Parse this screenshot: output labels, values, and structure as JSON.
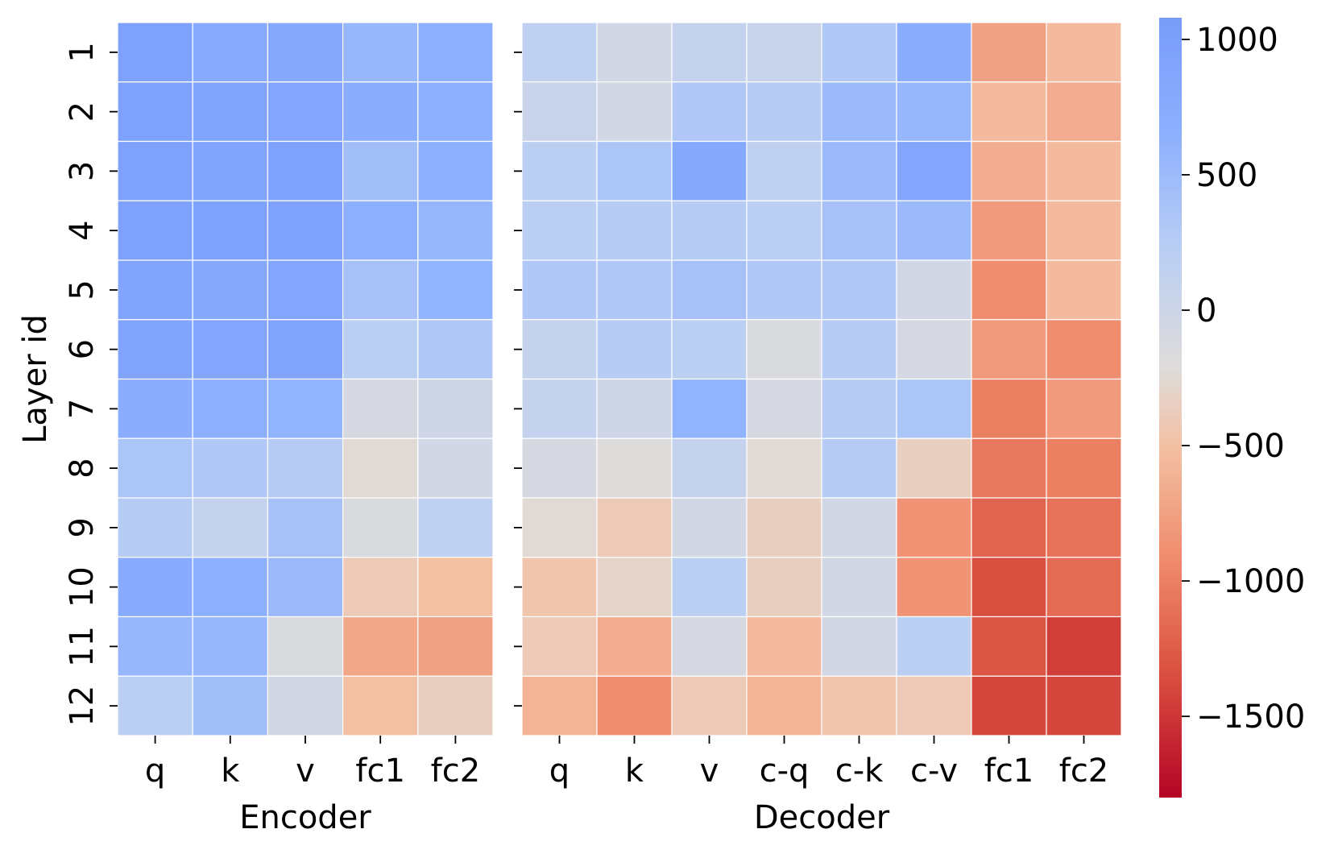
{
  "chart_data": {
    "type": "heatmap",
    "colormap": "coolwarm_r",
    "vmin": -1800,
    "vmax": 1080,
    "ylabel": "Layer id",
    "row_labels": [
      "1",
      "2",
      "3",
      "4",
      "5",
      "6",
      "7",
      "8",
      "9",
      "10",
      "11",
      "12"
    ],
    "colorbar": {
      "ticks": [
        1000,
        500,
        0,
        -500,
        -1000,
        -1500
      ],
      "tick_labels": [
        "1000",
        "500",
        "0",
        "−500",
        "−1000",
        "−1500"
      ]
    },
    "panels": [
      {
        "name": "encoder",
        "xlabel": "Encoder",
        "columns": [
          "q",
          "k",
          "v",
          "fc1",
          "fc2"
        ],
        "values": [
          [
            950,
            750,
            800,
            550,
            650
          ],
          [
            950,
            900,
            850,
            700,
            650
          ],
          [
            950,
            900,
            950,
            450,
            650
          ],
          [
            950,
            950,
            950,
            650,
            550
          ],
          [
            900,
            800,
            850,
            400,
            600
          ],
          [
            900,
            850,
            900,
            200,
            300
          ],
          [
            700,
            650,
            600,
            -100,
            0
          ],
          [
            350,
            300,
            250,
            -250,
            -50
          ],
          [
            250,
            100,
            400,
            -150,
            150
          ],
          [
            750,
            650,
            500,
            -400,
            -500
          ],
          [
            550,
            550,
            -150,
            -700,
            -750
          ],
          [
            200,
            450,
            -50,
            -500,
            -350
          ]
        ]
      },
      {
        "name": "decoder",
        "xlabel": "Decoder",
        "columns": [
          "q",
          "k",
          "v",
          "c-q",
          "c-k",
          "c-v",
          "fc1",
          "fc2"
        ],
        "values": [
          [
            150,
            -50,
            100,
            50,
            300,
            700,
            -750,
            -550
          ],
          [
            50,
            -50,
            300,
            250,
            500,
            550,
            -550,
            -650
          ],
          [
            200,
            350,
            800,
            150,
            500,
            850,
            -650,
            -550
          ],
          [
            200,
            250,
            250,
            200,
            400,
            500,
            -800,
            -550
          ],
          [
            300,
            300,
            400,
            300,
            300,
            -50,
            -900,
            -550
          ],
          [
            100,
            250,
            200,
            -150,
            250,
            -100,
            -800,
            -900
          ],
          [
            100,
            0,
            600,
            -100,
            250,
            350,
            -1000,
            -800
          ],
          [
            -100,
            -200,
            100,
            -250,
            250,
            -350,
            -1050,
            -1000
          ],
          [
            -250,
            -400,
            -50,
            -350,
            -50,
            -850,
            -1200,
            -1100
          ],
          [
            -450,
            -300,
            200,
            -350,
            -50,
            -850,
            -1350,
            -1150
          ],
          [
            -400,
            -650,
            -100,
            -550,
            -50,
            200,
            -1300,
            -1450
          ],
          [
            -600,
            -900,
            -400,
            -600,
            -450,
            -400,
            -1400,
            -1400
          ]
        ]
      }
    ]
  }
}
